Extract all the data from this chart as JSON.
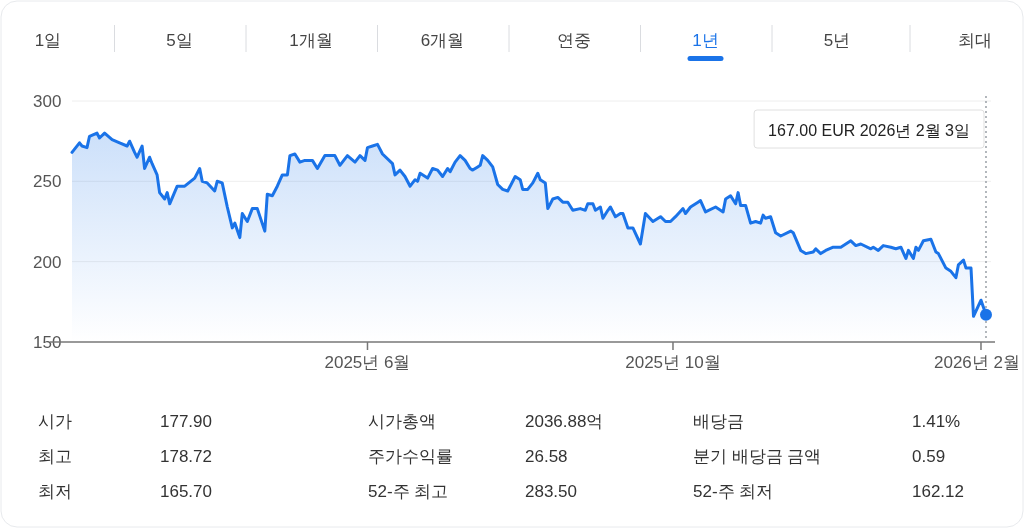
{
  "chart_data": {
    "type": "area",
    "color": "#1a73e8",
    "grid": "y",
    "ylim": [
      150,
      300
    ],
    "yticks": [
      150,
      200,
      250,
      300
    ],
    "xlim": [
      "2025-02-03",
      "2026-02-05"
    ],
    "xticks": [
      {
        "value": "2025-06-01",
        "label": "2025년 6월"
      },
      {
        "value": "2025-10-01",
        "label": "2025년 10월"
      },
      {
        "value": "2026-02-01",
        "label": "2026년 2월"
      }
    ],
    "ref_lines": [
      {
        "axis": "x",
        "value": "2026-02-03",
        "line_style": "dotted",
        "color": "#9aa0a6"
      }
    ],
    "annotations": [
      "1일",
      "5일",
      "1개월",
      "6개월",
      "연중",
      "1년",
      "5년",
      "최대",
      "시가",
      "177.90",
      "시가총액",
      "2036.88억",
      "배당금",
      "1.41%",
      "최고",
      "178.72",
      "주가수익률",
      "26.58",
      "분기 배당금 금액",
      "0.59",
      "최저",
      "165.70",
      "52-주 최고",
      "283.50",
      "52-주 최저",
      "162.12",
      "167.00 EUR  2026년 2월 3일"
    ],
    "x": [
      "2025-02-03",
      "2025-02-06",
      "2025-02-07",
      "2025-02-09",
      "2025-02-10",
      "2025-02-13",
      "2025-02-14",
      "2025-02-16",
      "2025-02-19",
      "2025-02-22",
      "2025-02-25",
      "2025-02-26",
      "2025-02-28",
      "2025-03-01",
      "2025-03-03",
      "2025-03-04",
      "2025-03-06",
      "2025-03-07",
      "2025-03-09",
      "2025-03-10",
      "2025-03-12",
      "2025-03-13",
      "2025-03-14",
      "2025-03-17",
      "2025-03-20",
      "2025-03-24",
      "2025-03-26",
      "2025-03-27",
      "2025-03-29",
      "2025-04-01",
      "2025-04-02",
      "2025-04-04",
      "2025-04-06",
      "2025-04-08",
      "2025-04-09",
      "2025-04-11",
      "2025-04-12",
      "2025-04-14",
      "2025-04-16",
      "2025-04-18",
      "2025-04-21",
      "2025-04-22",
      "2025-04-24",
      "2025-04-26",
      "2025-04-28",
      "2025-04-30",
      "2025-05-01",
      "2025-05-03",
      "2025-05-05",
      "2025-05-07",
      "2025-05-10",
      "2025-05-12",
      "2025-05-15",
      "2025-05-19",
      "2025-05-21",
      "2025-05-24",
      "2025-05-27",
      "2025-05-29",
      "2025-05-31",
      "2025-06-01",
      "2025-06-03",
      "2025-06-05",
      "2025-06-07",
      "2025-06-11",
      "2025-06-12",
      "2025-06-14",
      "2025-06-16",
      "2025-06-18",
      "2025-06-20",
      "2025-06-21",
      "2025-06-22",
      "2025-06-25",
      "2025-06-27",
      "2025-06-29",
      "2025-07-01",
      "2025-07-03",
      "2025-07-04",
      "2025-07-06",
      "2025-07-08",
      "2025-07-10",
      "2025-07-12",
      "2025-07-13",
      "2025-07-15",
      "2025-07-16",
      "2025-07-17",
      "2025-07-19",
      "2025-07-21",
      "2025-07-23",
      "2025-07-25",
      "2025-07-27",
      "2025-07-30",
      "2025-08-01",
      "2025-08-02",
      "2025-08-04",
      "2025-08-06",
      "2025-08-08",
      "2025-08-09",
      "2025-08-11",
      "2025-08-12",
      "2025-08-14",
      "2025-08-16",
      "2025-08-18",
      "2025-08-20",
      "2025-08-22",
      "2025-08-25",
      "2025-08-27",
      "2025-08-28",
      "2025-08-30",
      "2025-08-31",
      "2025-09-02",
      "2025-09-03",
      "2025-09-05",
      "2025-09-06",
      "2025-09-08",
      "2025-09-10",
      "2025-09-11",
      "2025-09-13",
      "2025-09-15",
      "2025-09-18",
      "2025-09-20",
      "2025-09-23",
      "2025-09-26",
      "2025-09-28",
      "2025-09-30",
      "2025-10-02",
      "2025-10-05",
      "2025-10-06",
      "2025-10-08",
      "2025-10-11",
      "2025-10-12",
      "2025-10-14",
      "2025-10-18",
      "2025-10-21",
      "2025-10-22",
      "2025-10-24",
      "2025-10-26",
      "2025-10-27",
      "2025-10-28",
      "2025-10-30",
      "2025-11-01",
      "2025-11-03",
      "2025-11-05",
      "2025-11-06",
      "2025-11-07",
      "2025-11-09",
      "2025-11-11",
      "2025-11-13",
      "2025-11-17",
      "2025-11-18",
      "2025-11-21",
      "2025-11-23",
      "2025-11-26",
      "2025-11-27",
      "2025-11-29",
      "2025-12-01",
      "2025-12-04",
      "2025-12-07",
      "2025-12-11",
      "2025-12-13",
      "2025-12-15",
      "2025-12-19",
      "2025-12-20",
      "2025-12-22",
      "2025-12-24",
      "2025-12-27",
      "2025-12-29",
      "2025-12-31",
      "2026-01-02",
      "2026-01-03",
      "2026-01-05",
      "2026-01-06",
      "2026-01-07",
      "2026-01-09",
      "2026-01-12",
      "2026-01-14",
      "2026-01-15",
      "2026-01-18",
      "2026-01-20",
      "2026-01-22",
      "2026-01-23",
      "2026-01-25",
      "2026-01-26",
      "2026-01-28",
      "2026-01-29",
      "2026-02-01",
      "2026-02-03"
    ],
    "values": [
      268,
      274,
      272,
      271,
      278,
      280,
      277,
      280,
      276,
      274,
      272,
      275,
      268,
      265,
      272,
      258,
      265,
      261,
      254,
      243,
      239,
      243,
      236,
      247,
      247,
      252,
      258,
      250,
      249,
      244,
      250,
      249,
      234,
      221,
      224,
      215,
      230,
      225,
      233,
      233,
      219,
      242,
      241,
      247,
      254,
      254,
      266,
      267,
      262,
      263,
      263,
      258,
      266,
      266,
      260,
      266,
      262,
      266,
      263,
      271,
      272,
      273,
      267,
      261,
      254,
      257,
      253,
      247,
      251,
      250,
      255,
      252,
      258,
      257,
      253,
      258,
      256,
      262,
      266,
      263,
      258,
      257,
      259,
      260,
      266,
      263,
      259,
      248,
      245,
      244,
      253,
      251,
      245,
      245,
      249,
      255,
      251,
      249,
      233,
      239,
      240,
      237,
      237,
      232,
      233,
      232,
      236,
      236,
      232,
      234,
      227,
      232,
      234,
      228,
      230,
      230,
      221,
      221,
      211,
      230,
      225,
      228,
      225,
      225,
      228,
      233,
      230,
      234,
      237,
      238,
      231,
      234,
      231,
      239,
      241,
      236,
      243,
      235,
      235,
      224,
      225,
      224,
      229,
      227,
      228,
      218,
      216,
      219,
      218,
      207,
      205,
      206,
      208,
      205,
      207,
      209,
      209,
      213,
      210,
      211,
      208,
      209,
      207,
      210,
      209,
      208,
      209,
      202,
      207,
      202,
      209,
      207,
      213,
      214,
      206,
      205,
      196,
      194,
      190,
      198,
      201,
      196,
      196,
      166,
      176,
      167
    ]
  }
}
